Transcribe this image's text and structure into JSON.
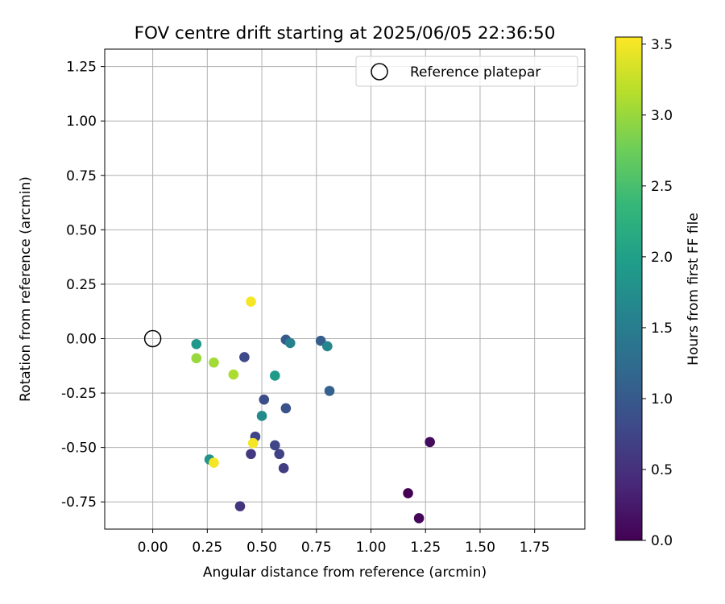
{
  "chart_data": {
    "type": "scatter",
    "title": "FOV centre drift starting at 2025/06/05 22:36:50",
    "xlabel": "Angular distance from reference (arcmin)",
    "ylabel": "Rotation from reference (arcmin)",
    "xlim": [
      -0.22,
      1.98
    ],
    "ylim": [
      -0.875,
      1.33
    ],
    "x_ticks": [
      "0.00",
      "0.25",
      "0.50",
      "0.75",
      "1.00",
      "1.25",
      "1.50",
      "1.75"
    ],
    "x_tick_values": [
      0,
      0.25,
      0.5,
      0.75,
      1.0,
      1.25,
      1.5,
      1.75
    ],
    "y_ticks": [
      "1.25",
      "1.00",
      "0.75",
      "0.50",
      "0.25",
      "0.00",
      "-0.25",
      "-0.50",
      "-0.75"
    ],
    "y_tick_values": [
      1.25,
      1.0,
      0.75,
      0.5,
      0.25,
      0.0,
      -0.25,
      -0.5,
      -0.75
    ],
    "grid": true,
    "legend": {
      "position": "top-right",
      "label": "Reference platepar"
    },
    "reference_point": {
      "x": 0.0,
      "y": 0.0
    },
    "colorbar": {
      "label": "Hours from first FF file",
      "range": [
        0.0,
        3.55
      ],
      "ticks": [
        "0.0",
        "0.5",
        "1.0",
        "1.5",
        "2.0",
        "2.5",
        "3.0",
        "3.5"
      ],
      "tick_values": [
        0.0,
        0.5,
        1.0,
        1.5,
        2.0,
        2.5,
        3.0,
        3.5
      ],
      "colormap": [
        "#440154",
        "#482878",
        "#3e4989",
        "#31688e",
        "#26828e",
        "#1f9e89",
        "#35b779",
        "#6ece58",
        "#b5de2b",
        "#fde725"
      ]
    },
    "points": [
      {
        "x": 1.17,
        "y": -0.71,
        "c": 0.0
      },
      {
        "x": 1.22,
        "y": -0.825,
        "c": 0.05
      },
      {
        "x": 1.27,
        "y": -0.475,
        "c": 0.1
      },
      {
        "x": 0.4,
        "y": -0.77,
        "c": 0.55
      },
      {
        "x": 0.45,
        "y": -0.53,
        "c": 0.6
      },
      {
        "x": 0.6,
        "y": -0.595,
        "c": 0.65
      },
      {
        "x": 0.58,
        "y": -0.53,
        "c": 0.7
      },
      {
        "x": 0.56,
        "y": -0.49,
        "c": 0.75
      },
      {
        "x": 0.47,
        "y": -0.45,
        "c": 0.75
      },
      {
        "x": 0.42,
        "y": -0.085,
        "c": 0.8
      },
      {
        "x": 0.51,
        "y": -0.28,
        "c": 0.85
      },
      {
        "x": 0.61,
        "y": -0.32,
        "c": 0.9
      },
      {
        "x": 0.61,
        "y": -0.005,
        "c": 1.0
      },
      {
        "x": 0.77,
        "y": -0.01,
        "c": 1.05
      },
      {
        "x": 0.81,
        "y": -0.24,
        "c": 1.1
      },
      {
        "x": 0.63,
        "y": -0.02,
        "c": 1.55
      },
      {
        "x": 0.8,
        "y": -0.035,
        "c": 1.65
      },
      {
        "x": 0.5,
        "y": -0.355,
        "c": 1.7
      },
      {
        "x": 0.26,
        "y": -0.555,
        "c": 1.8
      },
      {
        "x": 0.2,
        "y": -0.025,
        "c": 1.9
      },
      {
        "x": 0.56,
        "y": -0.17,
        "c": 1.95
      },
      {
        "x": 0.2,
        "y": -0.09,
        "c": 3.0
      },
      {
        "x": 0.28,
        "y": -0.11,
        "c": 3.05
      },
      {
        "x": 0.37,
        "y": -0.165,
        "c": 3.1
      },
      {
        "x": 0.45,
        "y": 0.17,
        "c": 3.5
      },
      {
        "x": 0.46,
        "y": -0.48,
        "c": 3.5
      },
      {
        "x": 0.28,
        "y": -0.57,
        "c": 3.5
      }
    ]
  }
}
